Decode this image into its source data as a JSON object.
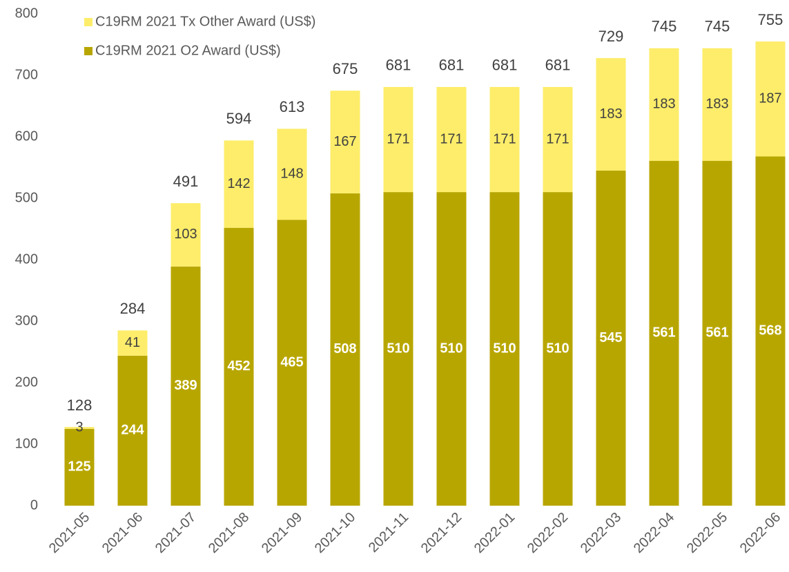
{
  "chart_data": {
    "type": "stacked_bar",
    "categories": [
      "2021-05",
      "2021-06",
      "2021-07",
      "2021-08",
      "2021-09",
      "2021-10",
      "2021-11",
      "2021-12",
      "2022-01",
      "2022-02",
      "2022-03",
      "2022-04",
      "2022-05",
      "2022-06"
    ],
    "series": [
      {
        "name": "C19RM 2021 O2 Award (US$)",
        "color": "#b8a600",
        "values": [
          125,
          244,
          389,
          452,
          465,
          508,
          510,
          510,
          510,
          510,
          545,
          561,
          561,
          568
        ]
      },
      {
        "name": "C19RM 2021 Tx Other Award (US$)",
        "color": "#fded6a",
        "values": [
          3,
          41,
          103,
          142,
          148,
          167,
          171,
          171,
          171,
          171,
          183,
          183,
          183,
          187
        ]
      }
    ],
    "totals": [
      128,
      284,
      491,
      594,
      613,
      675,
      681,
      681,
      681,
      681,
      729,
      745,
      745,
      755
    ],
    "ylim": [
      0,
      800
    ],
    "yticks": [
      0,
      100,
      200,
      300,
      400,
      500,
      600,
      700,
      800
    ],
    "grid": false
  }
}
